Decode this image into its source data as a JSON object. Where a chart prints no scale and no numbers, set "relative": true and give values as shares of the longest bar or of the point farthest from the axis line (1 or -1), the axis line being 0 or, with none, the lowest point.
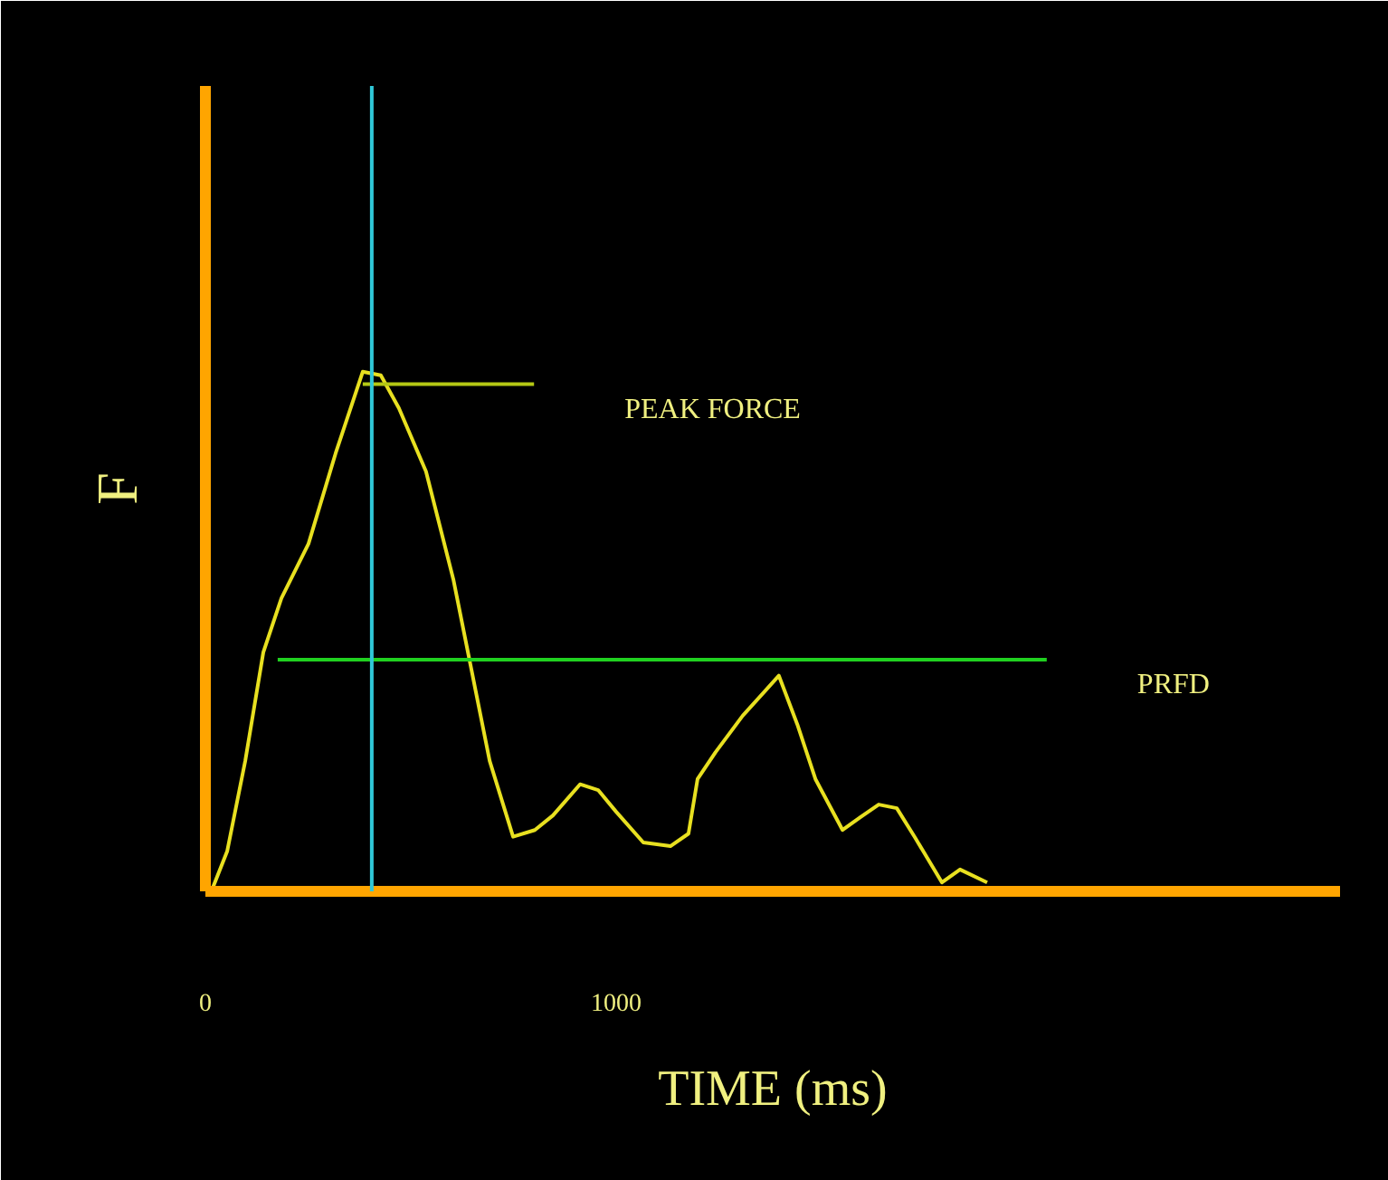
{
  "chart_data": {
    "type": "line",
    "relative": true,
    "xlabel": "TIME (ms)",
    "ylabel": "F",
    "xlim": [
      0,
      2762
    ],
    "xticks": [
      0,
      1000
    ],
    "grid": false,
    "marker": "none",
    "line_style": "solid",
    "series": [
      {
        "color": "#e8e020",
        "x": [
          0,
          18,
          53,
          97,
          141,
          185,
          251,
          317,
          383,
          427,
          471,
          537,
          604,
          648,
          692,
          749,
          802,
          846,
          912,
          956,
          1000,
          1066,
          1132,
          1176,
          1198,
          1242,
          1308,
          1396,
          1441,
          1485,
          1551,
          1595,
          1639,
          1683,
          1727,
          1793,
          1837,
          1903
        ],
        "values": [
          0,
          0.007,
          0.077,
          0.251,
          0.46,
          0.564,
          0.669,
          0.843,
          1.0,
          0.993,
          0.93,
          0.808,
          0.599,
          0.425,
          0.251,
          0.105,
          0.118,
          0.146,
          0.206,
          0.195,
          0.153,
          0.094,
          0.087,
          0.111,
          0.216,
          0.268,
          0.338,
          0.415,
          0.321,
          0.216,
          0.118,
          0.143,
          0.167,
          0.16,
          0.104,
          0.017,
          0.042,
          0.017
        ]
      },
      {
        "type": "line",
        "color": "#b4c814",
        "x": [
          383,
          800
        ],
        "values": [
          0.976,
          0.976
        ]
      },
      {
        "type": "line",
        "color": "#20d020",
        "x": [
          176,
          2048
        ],
        "values": [
          0.446,
          0.446
        ]
      }
    ],
    "ref_lines": [
      {
        "axis": "x",
        "value": 405,
        "color": "#30c8d8"
      }
    ],
    "annotations": [
      "PEAK FORCE",
      "PRFD"
    ]
  }
}
